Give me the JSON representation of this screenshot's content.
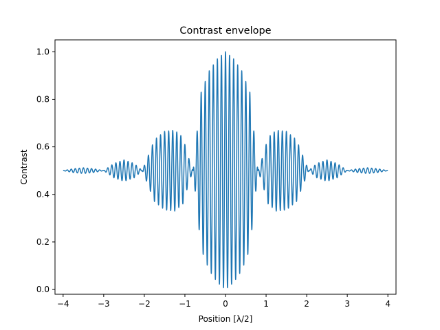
{
  "chart_data": {
    "type": "line",
    "title": "Contrast envelope",
    "xlabel": "Position [λ/2]",
    "ylabel": "Contrast",
    "xlim": [
      -4.2,
      4.2
    ],
    "ylim": [
      -0.02,
      1.05
    ],
    "x_ticks": [
      {
        "value": -4,
        "label": "−4"
      },
      {
        "value": -3,
        "label": "−3"
      },
      {
        "value": -2,
        "label": "−2"
      },
      {
        "value": -1,
        "label": "−1"
      },
      {
        "value": 0,
        "label": "0"
      },
      {
        "value": 1,
        "label": "1"
      },
      {
        "value": 2,
        "label": "2"
      },
      {
        "value": 3,
        "label": "3"
      },
      {
        "value": 4,
        "label": "4"
      }
    ],
    "y_ticks": [
      {
        "value": 0.0,
        "label": "0.0"
      },
      {
        "value": 0.2,
        "label": "0.2"
      },
      {
        "value": 0.4,
        "label": "0.4"
      },
      {
        "value": 0.6,
        "label": "0.6"
      },
      {
        "value": 0.8,
        "label": "0.8"
      },
      {
        "value": 1.0,
        "label": "1.0"
      }
    ],
    "grid": false,
    "series": [
      {
        "color": "#1f77b4",
        "x_range": [
          -4,
          4
        ],
        "baseline": 0.5,
        "carrier_oscillations_per_unit": 10,
        "envelope_points": [
          [
            -4.0,
            0.0
          ],
          [
            -3.75,
            0.008
          ],
          [
            -3.5,
            0.012
          ],
          [
            -3.25,
            0.008
          ],
          [
            -3.0,
            0.0
          ],
          [
            -2.75,
            0.03
          ],
          [
            -2.5,
            0.045
          ],
          [
            -2.25,
            0.03
          ],
          [
            -2.05,
            0.0
          ],
          [
            -1.75,
            0.13
          ],
          [
            -1.5,
            0.165
          ],
          [
            -1.25,
            0.17
          ],
          [
            -1.05,
            0.14
          ],
          [
            -0.9,
            0.05
          ],
          [
            -0.8,
            0.0
          ],
          [
            -0.6,
            0.33
          ],
          [
            -0.4,
            0.42
          ],
          [
            -0.2,
            0.47
          ],
          [
            0.0,
            0.5
          ],
          [
            0.2,
            0.47
          ],
          [
            0.4,
            0.42
          ],
          [
            0.6,
            0.33
          ],
          [
            0.8,
            0.0
          ],
          [
            0.9,
            0.05
          ],
          [
            1.05,
            0.14
          ],
          [
            1.25,
            0.17
          ],
          [
            1.5,
            0.165
          ],
          [
            1.75,
            0.13
          ],
          [
            2.05,
            0.0
          ],
          [
            2.25,
            0.03
          ],
          [
            2.5,
            0.045
          ],
          [
            2.75,
            0.03
          ],
          [
            3.0,
            0.0
          ],
          [
            3.25,
            0.008
          ],
          [
            3.5,
            0.012
          ],
          [
            3.75,
            0.008
          ],
          [
            4.0,
            0.0
          ]
        ]
      }
    ]
  }
}
